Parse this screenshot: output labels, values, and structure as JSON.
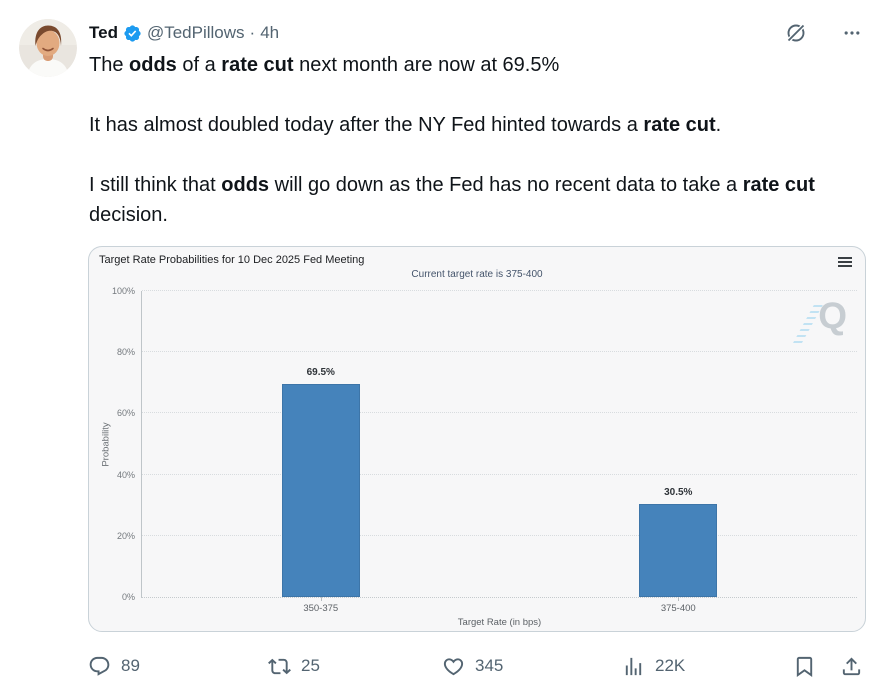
{
  "header": {
    "display_name": "Ted",
    "handle": "@TedPillows",
    "separator": "·",
    "timestamp": "4h"
  },
  "tweet": {
    "paragraphs": [
      {
        "segments": [
          {
            "text": "The ",
            "bold": false
          },
          {
            "text": "odds",
            "bold": true
          },
          {
            "text": " of a ",
            "bold": false
          },
          {
            "text": "rate cut",
            "bold": true
          },
          {
            "text": " next month are now at 69.5%",
            "bold": false
          }
        ]
      },
      {
        "segments": [
          {
            "text": "It has almost doubled today after the NY Fed hinted towards a ",
            "bold": false
          },
          {
            "text": "rate cut",
            "bold": true
          },
          {
            "text": ".",
            "bold": false
          }
        ]
      },
      {
        "segments": [
          {
            "text": "I still think that ",
            "bold": false
          },
          {
            "text": "odds",
            "bold": true
          },
          {
            "text": " will go down as the Fed has no recent data to take a ",
            "bold": false
          },
          {
            "text": "rate cut",
            "bold": true
          },
          {
            "text": " decision.",
            "bold": false
          }
        ]
      }
    ]
  },
  "chart_data": {
    "type": "bar",
    "title": "Target Rate Probabilities for 10 Dec 2025 Fed Meeting",
    "subtitle": "Current target rate is 375-400",
    "categories": [
      "350-375",
      "375-400"
    ],
    "values": [
      69.5,
      30.5
    ],
    "value_labels": [
      "69.5%",
      "30.5%"
    ],
    "xlabel": "Target Rate (in bps)",
    "ylabel": "Probability",
    "ylim": [
      0,
      100
    ],
    "yticks": [
      "0%",
      "20%",
      "40%",
      "60%",
      "80%",
      "100%"
    ],
    "grid": "dotted-horizontal",
    "legend": "none",
    "bar_color": "#4583bb",
    "watermark_letter": "Q"
  },
  "actions": {
    "reply": {
      "count": "89"
    },
    "repost": {
      "count": "25"
    },
    "like": {
      "count": "345"
    },
    "views": {
      "count": "22K"
    },
    "bookmark": {
      "count": ""
    },
    "share": {
      "count": ""
    }
  },
  "colors": {
    "text_primary": "#0f1419",
    "text_secondary": "#536471",
    "verified_blue": "#1d9bf0",
    "bar_blue": "#4583bb",
    "card_background": "#f7f7f8",
    "card_border": "#c9d2d8"
  }
}
